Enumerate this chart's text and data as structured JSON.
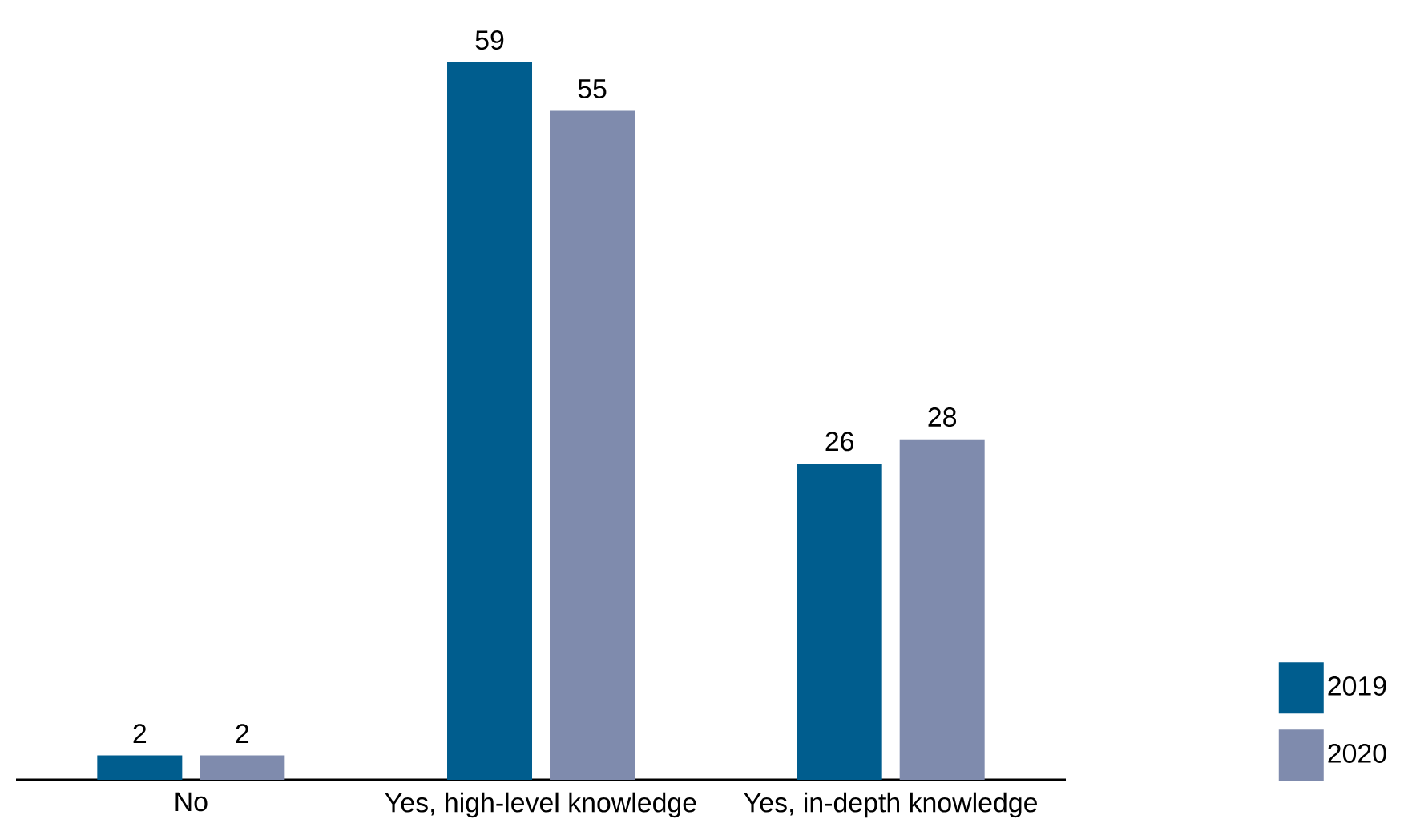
{
  "chart_data": {
    "type": "bar",
    "categories": [
      "No",
      "Yes, high-level knowledge",
      "Yes, in-depth knowledge"
    ],
    "series": [
      {
        "name": "2019",
        "color": "#005d8e",
        "values": [
          2,
          59,
          26
        ]
      },
      {
        "name": "2020",
        "color": "#7f8bad",
        "values": [
          2,
          55,
          28
        ]
      }
    ],
    "data_labels": true,
    "legend": "bottom right",
    "grid": false
  }
}
